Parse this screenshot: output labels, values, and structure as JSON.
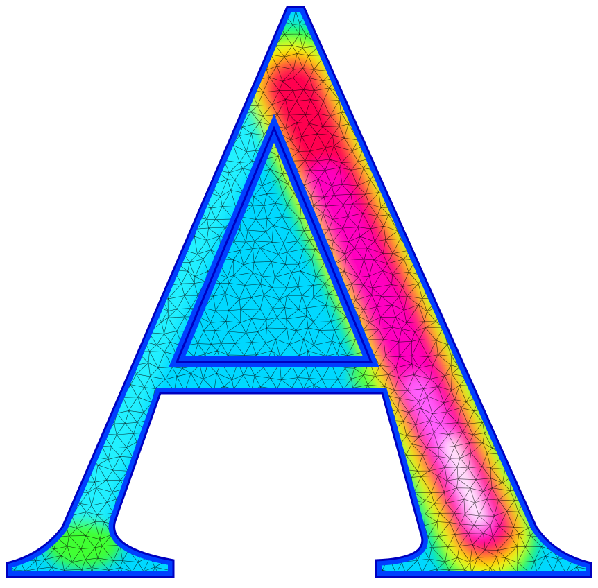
{
  "figure": {
    "glyph": "A",
    "colormap": [
      "#0000ff",
      "#0080ff",
      "#00ffff",
      "#00ff40",
      "#ffff00",
      "#ff8000",
      "#ff0000",
      "#ff00a0",
      "#ff00ff",
      "#ffffff"
    ],
    "mesh_color": "#000000",
    "background": "#ffffff"
  }
}
